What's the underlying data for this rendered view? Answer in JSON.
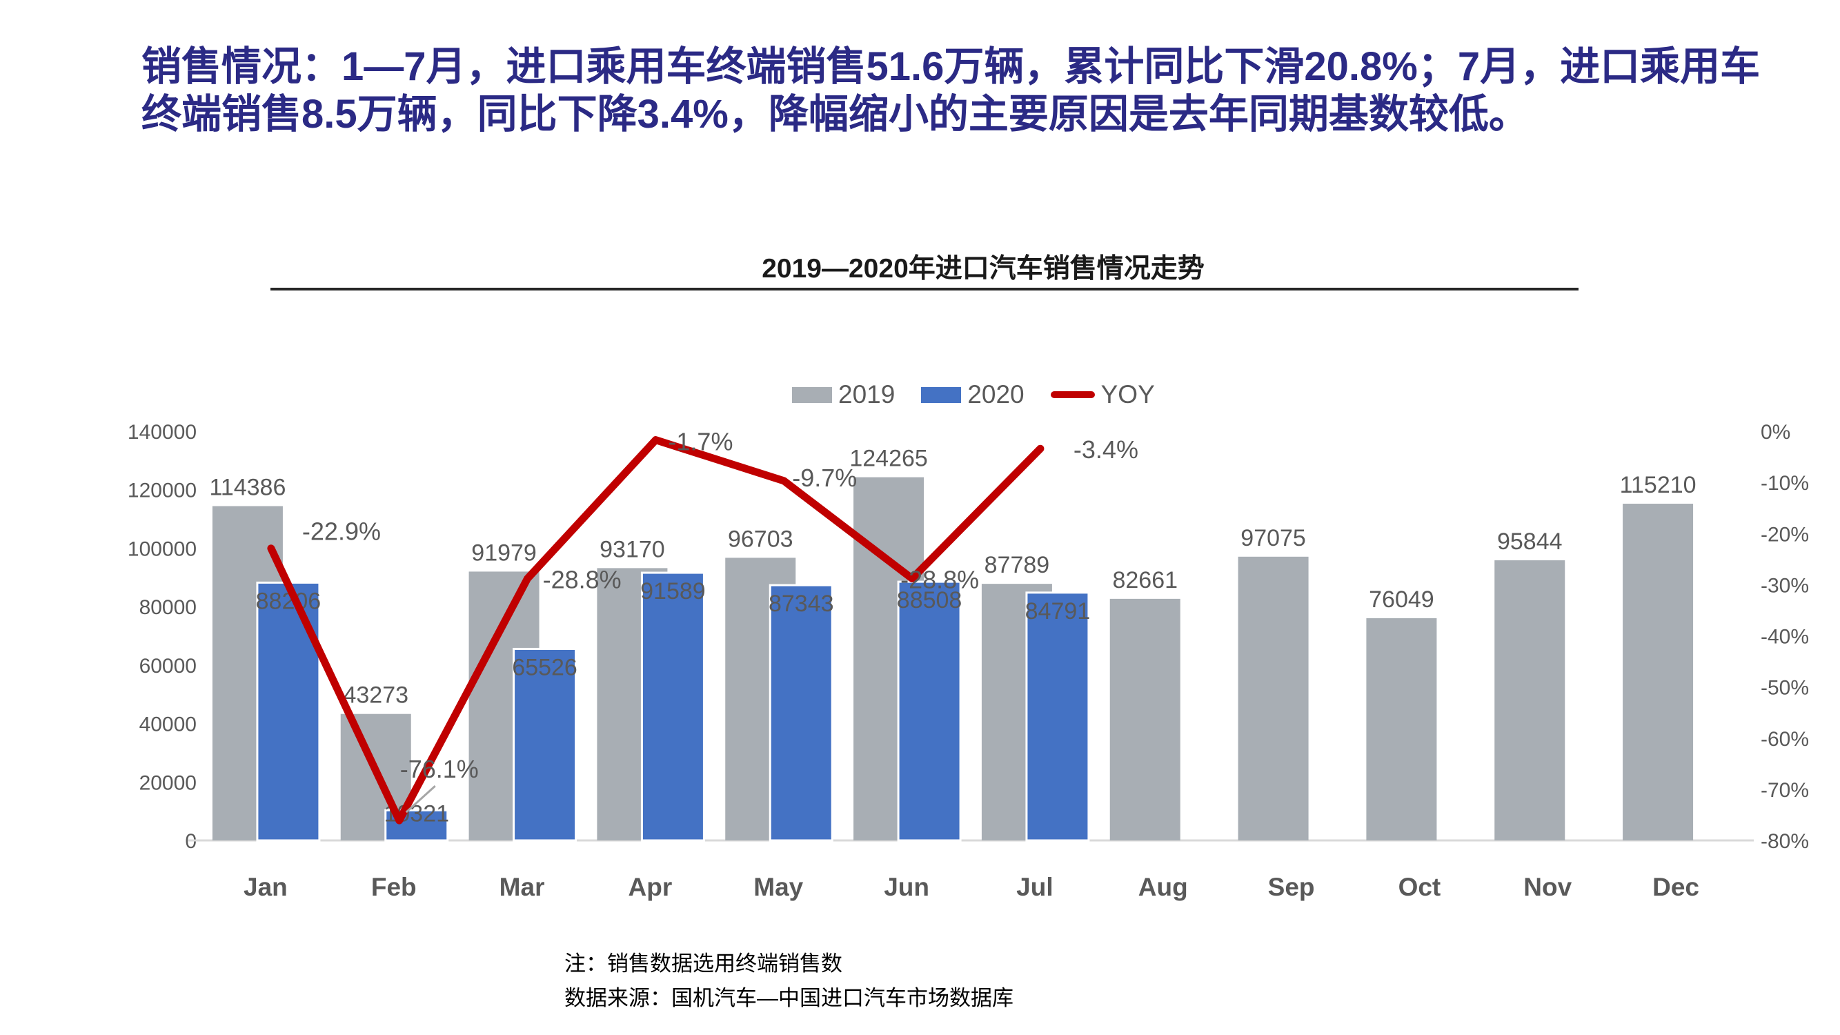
{
  "header": {
    "title": "销售情况：1—7月，进口乘用车终端销售51.6万辆，累计同比下滑20.8%；7月，进口乘用车终端销售8.5万辆，同比下降3.4%，降幅缩小的主要原因是去年同期基数较低。"
  },
  "colors": {
    "headline": "#2B2A85",
    "bar_2019": "#A8AEB4",
    "bar_2020": "#4472C4",
    "yoy_line": "#C00000",
    "data_label": "#595959",
    "axis_label": "#595959",
    "axis_line": "#D9D9D9",
    "leader_line": "#A6A6A6"
  },
  "chart_data": {
    "type": "bar",
    "title": "2019—2020年进口汽车销售情况走势",
    "categories": [
      "Jan",
      "Feb",
      "Mar",
      "Apr",
      "May",
      "Jun",
      "Jul",
      "Aug",
      "Sep",
      "Oct",
      "Nov",
      "Dec"
    ],
    "series": [
      {
        "name": "2019",
        "type": "bar",
        "color": "#A8AEB4",
        "axis": "left",
        "values": [
          114386,
          43273,
          91979,
          93170,
          96703,
          124265,
          87789,
          82661,
          97075,
          76049,
          95844,
          115210
        ]
      },
      {
        "name": "2020",
        "type": "bar",
        "color": "#4472C4",
        "axis": "left",
        "values": [
          88206,
          10321,
          65526,
          91589,
          87343,
          88508,
          84791,
          null,
          null,
          null,
          null,
          null
        ]
      },
      {
        "name": "YOY",
        "type": "line",
        "color": "#C00000",
        "axis": "right",
        "values": [
          -22.9,
          -76.1,
          -28.8,
          -1.7,
          -9.7,
          -28.8,
          -3.4,
          null,
          null,
          null,
          null,
          null
        ],
        "labels": [
          "-22.9%",
          "-76.1%",
          "-28.8%",
          "-1.7%",
          "-9.7%",
          "-28.8%",
          "-3.4%"
        ]
      }
    ],
    "left_axis": {
      "min": 0,
      "max": 140000,
      "step": 20000,
      "ticks": [
        "140000",
        "120000",
        "100000",
        "80000",
        "60000",
        "40000",
        "20000",
        "0"
      ]
    },
    "right_axis": {
      "min": -80,
      "max": 0,
      "step": 10,
      "ticks": [
        "0%",
        "-10%",
        "-20%",
        "-30%",
        "-40%",
        "-50%",
        "-60%",
        "-70%",
        "-80%"
      ]
    },
    "legend_position": "top",
    "grid": "off"
  },
  "footnotes": {
    "note": "注：销售数据选用终端销售数",
    "source": "数据来源：国机汽车—中国进口汽车市场数据库"
  }
}
